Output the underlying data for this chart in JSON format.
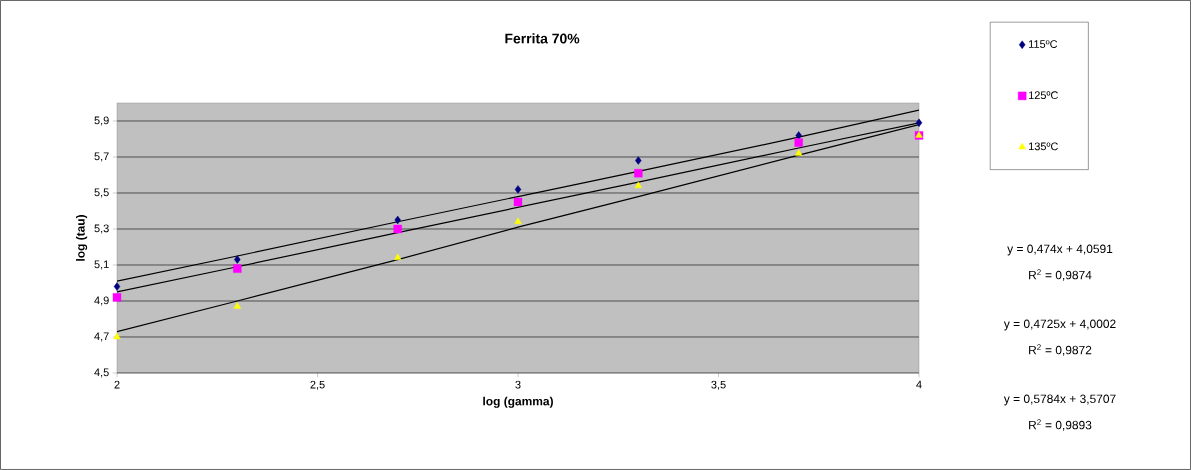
{
  "chart_data": {
    "type": "scatter",
    "title": "Ferrita 70%",
    "xlabel": "log (gamma)",
    "ylabel": "log (tau)",
    "xlim": [
      2,
      4
    ],
    "ylim": [
      4.5,
      6.0
    ],
    "xticks": [
      2,
      {
        "value": 2.5,
        "label": "2,5"
      },
      3,
      {
        "value": 3.5,
        "label": "3,5"
      },
      4
    ],
    "yticks": [
      {
        "value": 4.5,
        "label": "4,5"
      },
      {
        "value": 4.7,
        "label": "4,7"
      },
      {
        "value": 4.9,
        "label": "4,9"
      },
      {
        "value": 5.1,
        "label": "5,1"
      },
      {
        "value": 5.3,
        "label": "5,3"
      },
      {
        "value": 5.5,
        "label": "5,5"
      },
      {
        "value": 5.7,
        "label": "5,7"
      },
      {
        "value": 5.9,
        "label": "5,9"
      }
    ],
    "grid": "y",
    "legend": "right",
    "x": [
      2,
      2.3,
      2.7,
      3,
      3.3,
      3.7,
      4
    ],
    "series": [
      {
        "name": "115ºC",
        "color": "#000080",
        "marker": "diamond",
        "values": [
          4.98,
          5.13,
          5.35,
          5.52,
          5.68,
          5.82,
          5.89
        ]
      },
      {
        "name": "125ºC",
        "color": "#ff00ff",
        "marker": "square",
        "values": [
          4.92,
          5.08,
          5.3,
          5.45,
          5.61,
          5.78,
          5.82
        ]
      },
      {
        "name": "135ºC",
        "color": "#ffff00",
        "marker": "triangle",
        "values": [
          4.7,
          4.87,
          5.14,
          5.34,
          5.54,
          5.72,
          5.82
        ]
      },
      {
        "type": "line",
        "color": "#000000",
        "values": [
          5.01,
          5.15,
          5.34,
          5.48,
          5.62,
          5.81,
          5.96
        ]
      },
      {
        "type": "line",
        "color": "#000000",
        "values": [
          4.95,
          5.09,
          5.28,
          5.42,
          5.56,
          5.75,
          5.89
        ]
      },
      {
        "type": "line",
        "color": "#000000",
        "values": [
          4.73,
          4.9,
          5.13,
          5.31,
          5.48,
          5.71,
          5.88
        ]
      }
    ],
    "annotations": [
      "y = 0,474x + 4,0591",
      "R$^{2}$ = 0,9874",
      "y = 0,4725x + 4,0002",
      "R$^{2}$ = 0,9872",
      "y = 0,5784x + 3,5707",
      "R$^{2}$ = 0,9893"
    ]
  }
}
